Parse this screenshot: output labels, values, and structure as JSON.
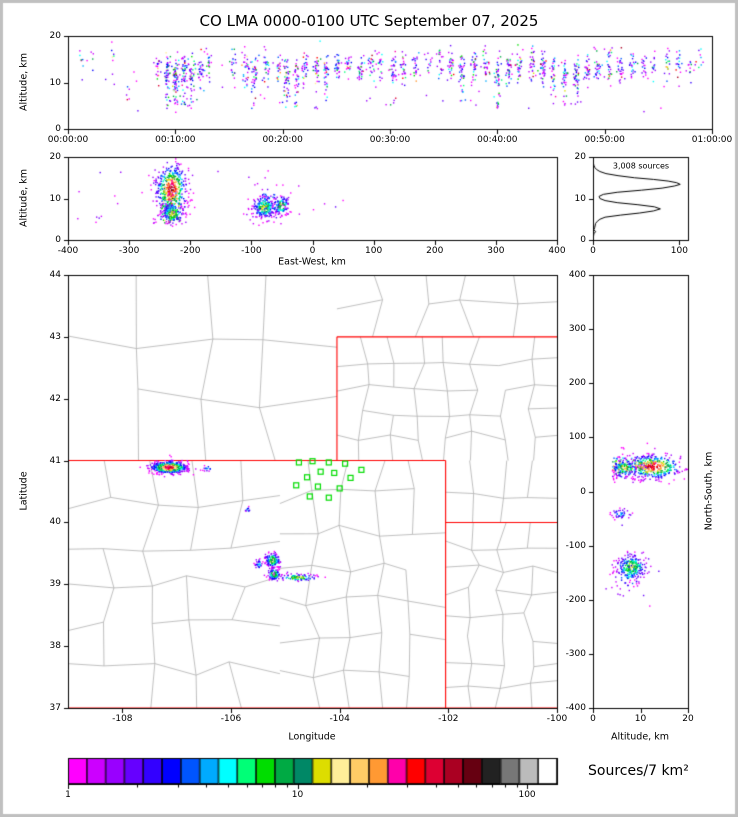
{
  "title": "CO LMA 0000-0100 UTC September 07, 2025",
  "colorbar": {
    "label": "Sources/7 km²",
    "tick_labels": [
      "1",
      "10",
      "100"
    ],
    "tick_values": [
      1,
      10,
      100
    ],
    "max_value": 135,
    "colors": [
      "#ff00ff",
      "#cc00ff",
      "#9900ff",
      "#6600ff",
      "#3300ff",
      "#0000ff",
      "#0055ff",
      "#00aaff",
      "#00ffff",
      "#00ff77",
      "#00dd00",
      "#00aa44",
      "#008866",
      "#dddd00",
      "#ffee99",
      "#ffcc66",
      "#ff9933",
      "#ff00aa",
      "#ff0000",
      "#dd0033",
      "#aa0022",
      "#660011",
      "#222222",
      "#777777",
      "#bbbbbb",
      "#ffffff"
    ]
  },
  "chart_data": {
    "type": "scatter",
    "panels": {
      "time_height": {
        "ylabel": "Altitude, km",
        "xlim": [
          0,
          3600
        ],
        "ylim": [
          0,
          20
        ],
        "xticks": [
          0,
          600,
          1200,
          1800,
          2400,
          3000,
          3600
        ],
        "xtick_labels": [
          "00:00:00",
          "00:10:00",
          "00:20:00",
          "00:30:00",
          "00:40:00",
          "00:50:00",
          "01:00:00"
        ],
        "yticks": [
          0,
          10,
          20
        ],
        "stripes": [
          [
            1.3,
            8,
            14.5,
            0
          ],
          [
            2.2,
            4,
            15,
            0
          ],
          [
            4.0,
            6,
            15.5,
            0
          ],
          [
            5.5,
            5,
            9,
            0
          ],
          [
            8.3,
            20,
            13,
            0
          ],
          [
            9.2,
            55,
            12.5,
            1
          ],
          [
            10.0,
            70,
            12,
            1
          ],
          [
            10.8,
            55,
            12.5,
            1
          ],
          [
            11.5,
            40,
            13,
            1
          ],
          [
            12.3,
            28,
            13,
            0
          ],
          [
            13.0,
            18,
            13.5,
            0
          ],
          [
            15.3,
            18,
            14,
            0
          ],
          [
            16.5,
            30,
            13,
            0
          ],
          [
            17.3,
            38,
            12.5,
            1
          ],
          [
            18.4,
            26,
            13,
            0
          ],
          [
            19.5,
            20,
            13.5,
            0
          ],
          [
            20.3,
            42,
            12.5,
            1
          ],
          [
            21.2,
            35,
            12,
            1
          ],
          [
            22.0,
            30,
            13,
            0
          ],
          [
            23.1,
            32,
            13,
            1
          ],
          [
            24.0,
            36,
            12.5,
            1
          ],
          [
            25.0,
            28,
            13.5,
            0
          ],
          [
            26.0,
            24,
            14,
            0
          ],
          [
            27.2,
            30,
            13,
            0
          ],
          [
            28.2,
            22,
            14,
            0
          ],
          [
            29.0,
            18,
            14,
            0
          ],
          [
            30.2,
            34,
            13,
            1
          ],
          [
            31.2,
            26,
            13.5,
            0
          ],
          [
            32.3,
            22,
            14,
            0
          ],
          [
            33.5,
            12,
            15,
            0
          ],
          [
            34.6,
            18,
            14.5,
            0
          ],
          [
            35.6,
            28,
            14,
            0
          ],
          [
            36.6,
            38,
            13,
            1
          ],
          [
            37.8,
            30,
            13,
            0
          ],
          [
            38.8,
            26,
            13.5,
            0
          ],
          [
            40.0,
            44,
            12.5,
            1
          ],
          [
            41.0,
            34,
            13,
            0
          ],
          [
            42.0,
            28,
            13.5,
            0
          ],
          [
            43.2,
            30,
            14,
            0
          ],
          [
            44.2,
            38,
            13,
            0
          ],
          [
            45.2,
            32,
            13,
            1
          ],
          [
            46.2,
            36,
            12.5,
            1
          ],
          [
            47.3,
            44,
            12,
            1
          ],
          [
            48.3,
            30,
            13,
            0
          ],
          [
            49.3,
            26,
            13.5,
            0
          ],
          [
            50.4,
            24,
            13.5,
            0
          ],
          [
            51.4,
            28,
            13,
            0
          ],
          [
            52.5,
            22,
            14,
            0
          ],
          [
            53.6,
            18,
            14,
            0
          ],
          [
            54.6,
            14,
            14.5,
            0
          ],
          [
            55.8,
            18,
            14,
            0
          ],
          [
            56.8,
            16,
            14,
            0
          ],
          [
            58.0,
            12,
            14.5,
            0
          ],
          [
            58.8,
            8,
            15,
            0
          ]
        ],
        "background_points": 60
      },
      "ew_height": {
        "xlabel": "East-West, km",
        "ylabel": "Altitude, km",
        "xlim": [
          -400,
          400
        ],
        "ylim": [
          0,
          20
        ],
        "xticks": [
          -400,
          -300,
          -200,
          -100,
          0,
          100,
          200,
          300,
          400
        ],
        "yticks": [
          0,
          10,
          20
        ],
        "clusters": [
          {
            "x": -232,
            "alt": 12.5,
            "sx": 13,
            "salt": 3.0,
            "n": 620,
            "dense": 3,
            "deep": 1
          },
          {
            "x": -230,
            "alt": 6.5,
            "sx": 9,
            "salt": 1.3,
            "n": 140,
            "dense": 2,
            "deep": 0
          },
          {
            "x": -80,
            "alt": 8,
            "sx": 9,
            "salt": 1.4,
            "n": 200,
            "dense": 2,
            "deep": 0
          },
          {
            "x": -52,
            "alt": 8.5,
            "sx": 6,
            "salt": 1.2,
            "n": 110,
            "dense": 2,
            "deep": 0
          },
          {
            "x": -75,
            "alt": 9,
            "sx": 18,
            "salt": 2.2,
            "n": 70,
            "dense": 1,
            "deep": 0
          }
        ],
        "background_points": 28
      },
      "alt_histogram": {
        "annotation": "3,008 sources",
        "xlim": [
          0,
          110
        ],
        "ylim": [
          0,
          20
        ],
        "xticks": [
          0,
          100
        ],
        "yticks": [
          0,
          10,
          20
        ],
        "profile": [
          [
            0,
            0
          ],
          [
            1.5,
            1
          ],
          [
            2,
            3
          ],
          [
            2.5,
            1
          ],
          [
            3,
            2
          ],
          [
            4,
            3
          ],
          [
            4.5,
            5
          ],
          [
            5,
            8
          ],
          [
            5.5,
            14
          ],
          [
            6,
            32
          ],
          [
            6.5,
            54
          ],
          [
            7,
            70
          ],
          [
            7.5,
            78
          ],
          [
            8,
            71
          ],
          [
            8.5,
            52
          ],
          [
            9,
            28
          ],
          [
            9.5,
            14
          ],
          [
            10,
            8
          ],
          [
            10.5,
            7
          ],
          [
            11,
            12
          ],
          [
            11.5,
            28
          ],
          [
            12,
            56
          ],
          [
            12.5,
            80
          ],
          [
            13,
            94
          ],
          [
            13.4,
            101
          ],
          [
            13.8,
            97
          ],
          [
            14.2,
            87
          ],
          [
            14.6,
            70
          ],
          [
            15,
            48
          ],
          [
            15.5,
            29
          ],
          [
            16,
            15
          ],
          [
            16.5,
            8
          ],
          [
            17,
            4
          ],
          [
            17.5,
            2
          ],
          [
            18,
            1
          ],
          [
            19,
            0
          ],
          [
            20,
            0
          ]
        ]
      },
      "map": {
        "xlabel": "Longitude",
        "ylabel": "Latitude",
        "xlim": [
          -109,
          -100
        ],
        "ylim": [
          37,
          44
        ],
        "xticks": [
          -108,
          -106,
          -104,
          -102,
          -100
        ],
        "yticks": [
          37,
          38,
          39,
          40,
          41,
          42,
          43,
          44
        ],
        "state_border_color": "#ff0000",
        "county_color": "#b0b0b0",
        "station_color": "#00dd00",
        "state_borders": [
          [
            -109.05,
            37,
            -109.05,
            41
          ],
          [
            -109.05,
            41,
            -102.05,
            41
          ],
          [
            -102.05,
            41,
            -102.05,
            37
          ],
          [
            -109.05,
            37,
            -100,
            37
          ],
          [
            -104.05,
            41,
            -104.05,
            43
          ],
          [
            -104.05,
            43,
            -100,
            43
          ],
          [
            -102.05,
            40,
            -100,
            40
          ]
        ],
        "county_regions": [
          {
            "lon": [
              -109,
              -104.05
            ],
            "lat": [
              41,
              44
            ],
            "cols": 4,
            "rows": 3,
            "seed": 11
          },
          {
            "lon": [
              -104.05,
              -100
            ],
            "lat": [
              43,
              44
            ],
            "cols": 5,
            "rows": 2,
            "seed": 12
          },
          {
            "lon": [
              -104.05,
              -100
            ],
            "lat": [
              41,
              43
            ],
            "cols": 8,
            "rows": 5,
            "seed": 13
          },
          {
            "lon": [
              -102.05,
              -100
            ],
            "lat": [
              40,
              41
            ],
            "cols": 4,
            "rows": 2,
            "seed": 14
          },
          {
            "lon": [
              -102.05,
              -100
            ],
            "lat": [
              37,
              40
            ],
            "cols": 4,
            "rows": 8,
            "seed": 15
          },
          {
            "lon": [
              -105.1,
              -102.05
            ],
            "lat": [
              37,
              41
            ],
            "cols": 5,
            "rows": 7,
            "seed": 16
          },
          {
            "lon": [
              -109.05,
              -105.1
            ],
            "lat": [
              37,
              41
            ],
            "cols": 5,
            "rows": 6,
            "seed": 17
          }
        ],
        "clusters": [
          {
            "lon": -107.15,
            "lat": 40.9,
            "sx": 0.17,
            "sy": 0.05,
            "n": 560,
            "dense": 3
          },
          {
            "lon": -106.45,
            "lat": 40.88,
            "sx": 0.05,
            "sy": 0.03,
            "n": 14,
            "dense": 1
          },
          {
            "lon": -105.7,
            "lat": 40.22,
            "sx": 0.03,
            "sy": 0.025,
            "n": 12,
            "dense": 1
          },
          {
            "lon": -105.25,
            "lat": 39.4,
            "sx": 0.07,
            "sy": 0.06,
            "n": 150,
            "dense": 2
          },
          {
            "lon": -105.22,
            "lat": 39.17,
            "sx": 0.06,
            "sy": 0.05,
            "n": 110,
            "dense": 2
          },
          {
            "lon": -104.78,
            "lat": 39.12,
            "sx": 0.17,
            "sy": 0.03,
            "n": 90,
            "dense": 2
          },
          {
            "lon": -105.5,
            "lat": 39.33,
            "sx": 0.04,
            "sy": 0.04,
            "n": 30,
            "dense": 1
          }
        ],
        "stations": [
          [
            -104.75,
            40.97
          ],
          [
            -104.5,
            40.99
          ],
          [
            -104.2,
            40.97
          ],
          [
            -103.9,
            40.95
          ],
          [
            -103.6,
            40.85
          ],
          [
            -104.35,
            40.82
          ],
          [
            -104.1,
            40.8
          ],
          [
            -103.8,
            40.72
          ],
          [
            -104.6,
            40.73
          ],
          [
            -104.8,
            40.6
          ],
          [
            -104.4,
            40.58
          ],
          [
            -104.0,
            40.55
          ],
          [
            -104.55,
            40.42
          ],
          [
            -104.2,
            40.4
          ]
        ]
      },
      "ns_height": {
        "xlabel": "Altitude, km",
        "ylabel": "North-South, km",
        "xlim": [
          0,
          20
        ],
        "ylim": [
          -400,
          400
        ],
        "xticks": [
          0,
          10,
          20
        ],
        "yticks": [
          -400,
          -300,
          -200,
          -100,
          0,
          100,
          200,
          300,
          400
        ],
        "clusters": [
          {
            "ns": 47,
            "alt": 12.5,
            "sns": 11,
            "salt": 3.0,
            "n": 560,
            "dense": 3,
            "deep": 1
          },
          {
            "ns": 45,
            "alt": 6.5,
            "sns": 8,
            "salt": 1.3,
            "n": 120,
            "dense": 2,
            "deep": 0
          },
          {
            "ns": -40,
            "alt": 5.5,
            "sns": 5,
            "salt": 1.0,
            "n": 40,
            "dense": 1,
            "deep": 0
          },
          {
            "ns": -138,
            "alt": 8,
            "sns": 12,
            "salt": 1.6,
            "n": 230,
            "dense": 2,
            "deep": 0
          },
          {
            "ns": -150,
            "alt": 7.5,
            "sns": 22,
            "salt": 1.8,
            "n": 60,
            "dense": 1,
            "deep": 0
          }
        ],
        "background_points": 15
      }
    }
  }
}
